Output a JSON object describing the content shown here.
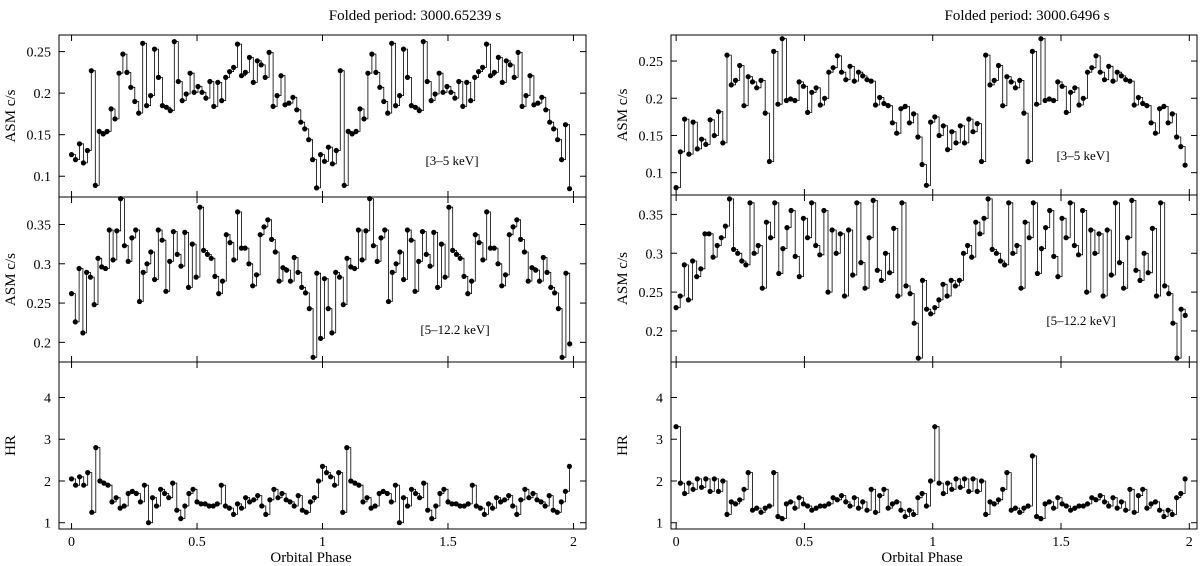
{
  "chart_data": [
    {
      "type": "scatter",
      "title": "Folded period: 3000.65239 s",
      "xlabel": "Orbital Phase",
      "xlim": [
        -0.05,
        2.05
      ],
      "xticks": [
        0,
        0.5,
        1,
        1.5,
        2
      ],
      "xtick_labels": [
        "0",
        "0.5",
        "1",
        "1.5",
        "2"
      ],
      "panels": [
        {
          "ylabel": "ASM c/s",
          "annotation": "[3–5 keV]",
          "ylim": [
            0.075,
            0.27
          ],
          "yticks": [
            0.1,
            0.15,
            0.2,
            0.25
          ],
          "ytick_labels": [
            "0.1",
            "0.15",
            "0.2",
            "0.25"
          ],
          "y": [
            0.126,
            0.12,
            0.139,
            0.116,
            0.131,
            0.227,
            0.089,
            0.154,
            0.151,
            0.154,
            0.181,
            0.169,
            0.224,
            0.247,
            0.225,
            0.207,
            0.19,
            0.176,
            0.26,
            0.185,
            0.197,
            0.253,
            0.219,
            0.185,
            0.183,
            0.179,
            0.262,
            0.214,
            0.191,
            0.199,
            0.224,
            0.201,
            0.208,
            0.201,
            0.194,
            0.214,
            0.184,
            0.213,
            0.191,
            0.219,
            0.226,
            0.231,
            0.259,
            0.221,
            0.225,
            0.243,
            0.213,
            0.239,
            0.234,
            0.219,
            0.249,
            0.184,
            0.197,
            0.221,
            0.186,
            0.188,
            0.195,
            0.18,
            0.165,
            0.157,
            0.144,
            0.12,
            0.086,
            0.126,
            0.118,
            0.135,
            0.115,
            0.131,
            0.227,
            0.089,
            0.154,
            0.151,
            0.154,
            0.181,
            0.169,
            0.224,
            0.247,
            0.225,
            0.207,
            0.19,
            0.176,
            0.26,
            0.185,
            0.197,
            0.253,
            0.219,
            0.185,
            0.183,
            0.179,
            0.262,
            0.214,
            0.191,
            0.199,
            0.224,
            0.201,
            0.208,
            0.201,
            0.194,
            0.214,
            0.184,
            0.213,
            0.191,
            0.219,
            0.226,
            0.231,
            0.259,
            0.221,
            0.225,
            0.243,
            0.213,
            0.239,
            0.234,
            0.219,
            0.249,
            0.184,
            0.197,
            0.221,
            0.186,
            0.188,
            0.195,
            0.18,
            0.165,
            0.157,
            0.144,
            0.12,
            0.162,
            0.085
          ]
        },
        {
          "ylabel": "ASM c/s",
          "annotation": "[5–12.2 keV]",
          "ylim": [
            0.175,
            0.385
          ],
          "yticks": [
            0.2,
            0.25,
            0.3,
            0.35
          ],
          "ytick_labels": [
            "0.2",
            "0.25",
            "0.3",
            "0.35"
          ],
          "y": [
            0.262,
            0.226,
            0.294,
            0.212,
            0.289,
            0.283,
            0.248,
            0.307,
            0.296,
            0.294,
            0.343,
            0.305,
            0.342,
            0.383,
            0.323,
            0.303,
            0.333,
            0.343,
            0.252,
            0.289,
            0.3,
            0.315,
            0.28,
            0.343,
            0.33,
            0.265,
            0.303,
            0.341,
            0.312,
            0.297,
            0.34,
            0.27,
            0.325,
            0.283,
            0.372,
            0.317,
            0.312,
            0.307,
            0.284,
            0.262,
            0.278,
            0.337,
            0.327,
            0.305,
            0.366,
            0.32,
            0.32,
            0.3,
            0.272,
            0.286,
            0.337,
            0.347,
            0.356,
            0.331,
            0.315,
            0.278,
            0.295,
            0.292,
            0.278,
            0.308,
            0.289,
            0.27,
            0.263,
            0.243,
            0.181,
            0.288,
            0.205,
            0.281,
            0.243,
            0.212,
            0.289,
            0.283,
            0.248,
            0.307,
            0.296,
            0.294,
            0.343,
            0.305,
            0.342,
            0.383,
            0.323,
            0.303,
            0.333,
            0.343,
            0.252,
            0.289,
            0.3,
            0.315,
            0.28,
            0.343,
            0.33,
            0.265,
            0.303,
            0.341,
            0.312,
            0.297,
            0.34,
            0.27,
            0.325,
            0.283,
            0.372,
            0.317,
            0.312,
            0.307,
            0.284,
            0.262,
            0.278,
            0.337,
            0.327,
            0.305,
            0.366,
            0.32,
            0.32,
            0.3,
            0.272,
            0.286,
            0.337,
            0.347,
            0.356,
            0.331,
            0.315,
            0.278,
            0.295,
            0.292,
            0.278,
            0.308,
            0.289,
            0.27,
            0.263,
            0.243,
            0.181,
            0.288,
            0.198
          ]
        },
        {
          "ylabel": "HR",
          "annotation": "",
          "ylim": [
            0.85,
            4.85
          ],
          "yticks": [
            1,
            2,
            3,
            4
          ],
          "ytick_labels": [
            "1",
            "2",
            "3",
            "4"
          ],
          "y": [
            2.05,
            1.9,
            2.1,
            1.9,
            2.2,
            1.25,
            2.8,
            2.0,
            1.95,
            1.9,
            1.5,
            1.6,
            1.35,
            1.4,
            1.7,
            1.75,
            1.7,
            1.5,
            1.9,
            1.0,
            1.6,
            1.4,
            1.8,
            1.7,
            1.6,
            1.95,
            1.3,
            1.1,
            1.4,
            1.7,
            1.8,
            1.5,
            1.45,
            1.45,
            1.4,
            1.4,
            1.45,
            1.9,
            1.4,
            1.35,
            1.2,
            1.45,
            1.35,
            1.6,
            1.5,
            1.55,
            1.65,
            1.4,
            1.2,
            1.55,
            1.8,
            1.6,
            1.7,
            1.55,
            1.5,
            1.4,
            1.65,
            1.3,
            1.25,
            1.5,
            1.6,
            2.0,
            2.35,
            2.2,
            2.1,
            1.9,
            2.2,
            1.25,
            2.8,
            2.0,
            1.95,
            1.9,
            1.5,
            1.6,
            1.35,
            1.4,
            1.7,
            1.75,
            1.7,
            1.5,
            1.9,
            1.0,
            1.6,
            1.4,
            1.8,
            1.7,
            1.6,
            1.95,
            1.3,
            1.1,
            1.4,
            1.7,
            1.8,
            1.5,
            1.45,
            1.45,
            1.4,
            1.4,
            1.45,
            1.9,
            1.4,
            1.35,
            1.2,
            1.45,
            1.35,
            1.6,
            1.5,
            1.55,
            1.65,
            1.4,
            1.2,
            1.55,
            1.8,
            1.6,
            1.7,
            1.55,
            1.5,
            1.4,
            1.65,
            1.3,
            1.25,
            1.5,
            1.75,
            2.35
          ]
        }
      ]
    },
    {
      "type": "scatter",
      "title": "Folded period: 3000.6496 s",
      "xlabel": "Orbital Phase",
      "xlim": [
        -0.02,
        2.03
      ],
      "xticks": [
        0,
        0.5,
        1,
        1.5,
        2
      ],
      "xtick_labels": [
        "0",
        "0.5",
        "1",
        "1.5",
        "2"
      ],
      "panels": [
        {
          "ylabel": "ASM c/s",
          "annotation": "[3–5 keV]",
          "ylim": [
            0.07,
            0.285
          ],
          "yticks": [
            0.1,
            0.15,
            0.2,
            0.25
          ],
          "ytick_labels": [
            "0.1",
            "0.15",
            "0.2",
            "0.25"
          ],
          "y": [
            0.08,
            0.128,
            0.172,
            0.125,
            0.168,
            0.132,
            0.145,
            0.138,
            0.171,
            0.15,
            0.182,
            0.14,
            0.258,
            0.218,
            0.224,
            0.244,
            0.19,
            0.229,
            0.222,
            0.214,
            0.224,
            0.18,
            0.115,
            0.263,
            0.192,
            0.28,
            0.197,
            0.199,
            0.197,
            0.222,
            0.216,
            0.181,
            0.208,
            0.214,
            0.191,
            0.2,
            0.235,
            0.241,
            0.257,
            0.235,
            0.225,
            0.243,
            0.223,
            0.235,
            0.23,
            0.225,
            0.223,
            0.191,
            0.201,
            0.193,
            0.19,
            0.167,
            0.153,
            0.186,
            0.189,
            0.167,
            0.179,
            0.148,
            0.111,
            0.083,
            0.168,
            0.175,
            0.15,
            0.163,
            0.131,
            0.155,
            0.14,
            0.163,
            0.14,
            0.172,
            0.155,
            0.166,
            0.115,
            0.258,
            0.218,
            0.224,
            0.244,
            0.19,
            0.229,
            0.222,
            0.214,
            0.224,
            0.18,
            0.115,
            0.263,
            0.192,
            0.28,
            0.197,
            0.199,
            0.197,
            0.222,
            0.216,
            0.181,
            0.208,
            0.214,
            0.191,
            0.2,
            0.235,
            0.241,
            0.257,
            0.235,
            0.225,
            0.243,
            0.223,
            0.235,
            0.23,
            0.225,
            0.223,
            0.191,
            0.201,
            0.193,
            0.19,
            0.167,
            0.153,
            0.186,
            0.189,
            0.167,
            0.179,
            0.148,
            0.135,
            0.11
          ]
        },
        {
          "ylabel": "ASM c/s",
          "annotation": "[5–12.2 keV]",
          "ylim": [
            0.16,
            0.375
          ],
          "yticks": [
            0.2,
            0.25,
            0.3,
            0.35
          ],
          "ytick_labels": [
            "0.2",
            "0.25",
            "0.3",
            "0.35"
          ],
          "y": [
            0.23,
            0.245,
            0.285,
            0.24,
            0.29,
            0.27,
            0.28,
            0.325,
            0.325,
            0.295,
            0.31,
            0.32,
            0.335,
            0.37,
            0.305,
            0.3,
            0.29,
            0.285,
            0.365,
            0.3,
            0.31,
            0.255,
            0.34,
            0.32,
            0.365,
            0.274,
            0.306,
            0.333,
            0.355,
            0.296,
            0.27,
            0.345,
            0.32,
            0.365,
            0.31,
            0.298,
            0.355,
            0.25,
            0.33,
            0.3,
            0.325,
            0.245,
            0.33,
            0.272,
            0.365,
            0.288,
            0.255,
            0.32,
            0.368,
            0.278,
            0.265,
            0.3,
            0.275,
            0.332,
            0.245,
            0.365,
            0.258,
            0.248,
            0.21,
            0.165,
            0.265,
            0.228,
            0.222,
            0.23,
            0.24,
            0.26,
            0.245,
            0.265,
            0.258,
            0.265,
            0.3,
            0.31,
            0.295,
            0.34,
            0.325,
            0.345,
            0.37,
            0.305,
            0.3,
            0.29,
            0.285,
            0.365,
            0.3,
            0.31,
            0.255,
            0.34,
            0.32,
            0.365,
            0.274,
            0.306,
            0.333,
            0.355,
            0.296,
            0.27,
            0.345,
            0.32,
            0.365,
            0.31,
            0.298,
            0.355,
            0.25,
            0.33,
            0.3,
            0.325,
            0.245,
            0.33,
            0.272,
            0.365,
            0.288,
            0.255,
            0.32,
            0.368,
            0.278,
            0.265,
            0.3,
            0.275,
            0.332,
            0.245,
            0.365,
            0.258,
            0.248,
            0.21,
            0.165,
            0.228,
            0.22
          ]
        },
        {
          "ylabel": "HR",
          "annotation": "",
          "ylim": [
            0.85,
            4.85
          ],
          "yticks": [
            1,
            2,
            3,
            4
          ],
          "ytick_labels": [
            "1",
            "2",
            "3",
            "4"
          ],
          "y": [
            3.3,
            1.95,
            1.7,
            1.95,
            1.8,
            2.05,
            1.85,
            2.05,
            1.75,
            2.05,
            1.75,
            2.0,
            1.2,
            1.5,
            1.45,
            1.55,
            1.8,
            2.2,
            1.3,
            1.35,
            1.25,
            1.35,
            1.4,
            2.2,
            1.15,
            1.1,
            1.45,
            1.5,
            1.35,
            1.6,
            1.45,
            1.4,
            1.3,
            1.35,
            1.4,
            1.4,
            1.45,
            1.6,
            1.55,
            1.65,
            1.5,
            1.4,
            1.6,
            1.35,
            1.5,
            1.3,
            1.8,
            1.25,
            1.65,
            1.8,
            1.35,
            1.45,
            1.5,
            1.3,
            1.15,
            1.3,
            1.2,
            1.6,
            1.7,
            1.4,
            2.0,
            3.3,
            1.95,
            1.7,
            1.95,
            1.8,
            2.05,
            1.85,
            2.05,
            1.75,
            2.05,
            1.75,
            2.0,
            1.2,
            1.5,
            1.45,
            1.55,
            1.8,
            2.2,
            1.3,
            1.35,
            1.25,
            1.35,
            1.4,
            2.6,
            1.15,
            1.1,
            1.45,
            1.5,
            1.35,
            1.6,
            1.45,
            1.4,
            1.3,
            1.35,
            1.4,
            1.4,
            1.45,
            1.6,
            1.55,
            1.65,
            1.5,
            1.4,
            1.6,
            1.35,
            1.5,
            1.3,
            1.8,
            1.25,
            1.65,
            1.8,
            1.35,
            1.45,
            1.5,
            1.3,
            1.15,
            1.3,
            1.2,
            1.6,
            1.7,
            2.05
          ]
        }
      ]
    }
  ]
}
